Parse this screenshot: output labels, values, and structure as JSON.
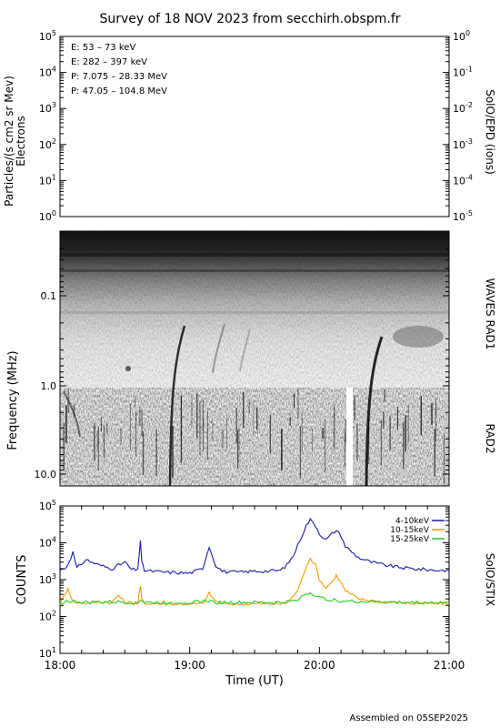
{
  "title": "Survey of 18 NOV 2023 from secchirh.obspm.fr",
  "footer": "Assembled on 05SEP2025",
  "panels": {
    "particles": {
      "ylabel": "Particles/(s cm2 sr Mev)",
      "ylabel2": "Electrons",
      "right_label": "SolO/EPD (ions)",
      "yticks": [
        "10^0",
        "10^1",
        "10^2",
        "10^3",
        "10^4",
        "10^5"
      ],
      "right_ticks": [
        "10^-5",
        "10^-4",
        "10^-3",
        "10^-2",
        "10^-1",
        "10^0"
      ],
      "legend": [
        {
          "text": "E: 53 – 73 keV",
          "color": "#22cc22"
        },
        {
          "text": "E: 282 – 397 keV",
          "color": "#dd2222"
        },
        {
          "text": "P: 7.075 – 28.33 MeV",
          "color": "#000000"
        },
        {
          "text": "P: 47.05 – 104.8 MeV",
          "color": "#1a1aaa"
        }
      ]
    },
    "spectrogram": {
      "ylabel": "Frequency (MHz)",
      "yticks": [
        "0.1",
        "1.0",
        "10.0"
      ],
      "right_label_top": "WAVES RAD1",
      "right_label_bottom": "RAD2"
    },
    "stix": {
      "ylabel": "COUNTS",
      "right_label": "SolO/STIX",
      "yticks": [
        "10^1",
        "10^2",
        "10^3",
        "10^4",
        "10^5"
      ],
      "xlabel": "Time (UT)",
      "xticks": [
        "18:00",
        "19:00",
        "20:00",
        "21:00"
      ]
    }
  },
  "chart_data": [
    {
      "type": "line",
      "title": "",
      "ylabel": "Particles/(s cm2 sr Mev) Electrons",
      "ylim": [
        1,
        100000
      ],
      "yscale": "log",
      "series": []
    },
    {
      "type": "heatmap",
      "ylabel": "Frequency (MHz)",
      "ylim": [
        10.0,
        0.02
      ],
      "yscale": "log",
      "xlim": [
        "18:00",
        "21:00"
      ],
      "instruments": [
        "WAVES RAD1",
        "RAD2"
      ],
      "bursts_ut": [
        "18:50",
        "20:20"
      ]
    },
    {
      "type": "line",
      "ylabel": "COUNTS",
      "xlabel": "Time (UT)",
      "yscale": "log",
      "ylim": [
        10,
        100000
      ],
      "xlim": [
        18.0,
        21.0
      ],
      "series": [
        {
          "name": "4-10keV",
          "color": "#1a1aaa",
          "x": [
            18.0,
            18.05,
            18.1,
            18.13,
            18.2,
            18.3,
            18.4,
            18.5,
            18.55,
            18.6,
            18.62,
            18.63,
            18.65,
            18.7,
            18.8,
            19.0,
            19.1,
            19.15,
            19.2,
            19.25,
            19.3,
            19.4,
            19.5,
            19.6,
            19.7,
            19.75,
            19.8,
            19.85,
            19.9,
            19.93,
            19.97,
            20.0,
            20.05,
            20.1,
            20.13,
            20.17,
            20.2,
            20.3,
            20.4,
            20.5,
            20.6,
            20.7,
            20.8,
            20.9,
            21.0
          ],
          "y": [
            1800,
            2200,
            5500,
            2000,
            3500,
            2500,
            2000,
            3000,
            1900,
            1800,
            12000,
            3000,
            1800,
            1700,
            1600,
            1500,
            2000,
            8000,
            2500,
            1700,
            1600,
            1600,
            1700,
            1700,
            1800,
            2500,
            4500,
            12000,
            30000,
            42000,
            30000,
            18000,
            12000,
            18000,
            22000,
            15000,
            8000,
            4000,
            3000,
            2500,
            2200,
            2000,
            1900,
            1800,
            1800
          ]
        },
        {
          "name": "10-15keV",
          "color": "#ff9900",
          "x": [
            18.0,
            18.03,
            18.06,
            18.1,
            18.2,
            18.3,
            18.4,
            18.45,
            18.5,
            18.6,
            18.62,
            18.63,
            18.65,
            18.8,
            19.0,
            19.1,
            19.15,
            19.2,
            19.25,
            19.4,
            19.6,
            19.7,
            19.75,
            19.8,
            19.85,
            19.9,
            19.93,
            19.97,
            20.0,
            20.05,
            20.1,
            20.13,
            20.17,
            20.2,
            20.3,
            20.5,
            20.7,
            21.0
          ],
          "y": [
            220,
            350,
            600,
            250,
            230,
            250,
            240,
            380,
            240,
            230,
            700,
            300,
            230,
            220,
            220,
            220,
            420,
            260,
            220,
            220,
            220,
            220,
            240,
            350,
            700,
            2500,
            3800,
            2500,
            1000,
            600,
            900,
            1300,
            800,
            500,
            300,
            250,
            230,
            220
          ]
        },
        {
          "name": "15-25keV",
          "color": "#22cc22",
          "x": [
            18.0,
            18.05,
            18.2,
            18.4,
            18.6,
            18.62,
            18.65,
            18.8,
            19.0,
            19.15,
            19.2,
            19.5,
            19.7,
            19.8,
            19.85,
            19.9,
            19.93,
            19.97,
            20.0,
            20.1,
            20.2,
            20.4,
            20.7,
            21.0
          ],
          "y": [
            230,
            260,
            240,
            250,
            240,
            290,
            240,
            240,
            240,
            270,
            240,
            240,
            240,
            260,
            320,
            420,
            440,
            380,
            320,
            280,
            260,
            250,
            240,
            240
          ]
        }
      ]
    }
  ]
}
